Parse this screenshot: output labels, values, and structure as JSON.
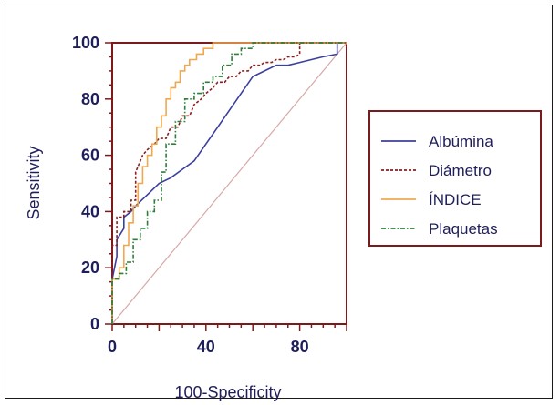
{
  "chart_data": {
    "type": "line",
    "xlabel": "100-Specificity",
    "ylabel": "Sensitivity",
    "xlim": [
      0,
      100
    ],
    "ylim": [
      0,
      100
    ],
    "x_ticks": [
      0,
      40,
      80
    ],
    "y_ticks": [
      0,
      20,
      40,
      60,
      80,
      100
    ],
    "grid": false,
    "legend_position": "right",
    "colors": {
      "axes": "#7a1a1a",
      "text": "#1e1e5a",
      "reference": "#d8a8a8"
    },
    "reference_line": {
      "x": [
        0,
        100
      ],
      "y": [
        0,
        100
      ]
    },
    "series": [
      {
        "name": "Albúmina",
        "color": "#3b3f9e",
        "style": "solid",
        "x": [
          0,
          0,
          2,
          2,
          5,
          5,
          8,
          10,
          15,
          20,
          25,
          30,
          35,
          40,
          45,
          50,
          55,
          60,
          65,
          70,
          75,
          80,
          85,
          90,
          96,
          96,
          100
        ],
        "y": [
          0,
          16,
          24,
          30,
          34,
          38,
          40,
          42,
          46,
          50,
          52,
          55,
          58,
          64,
          70,
          76,
          82,
          88,
          90,
          92,
          92,
          93,
          94,
          95,
          96,
          100,
          100
        ]
      },
      {
        "name": "Diámetro",
        "color": "#8b1e1e",
        "style": "dashed",
        "x": [
          0,
          0,
          2,
          2,
          5,
          5,
          8,
          8,
          10,
          10,
          13,
          15,
          18,
          20,
          23,
          25,
          28,
          30,
          33,
          35,
          38,
          40,
          43,
          45,
          48,
          50,
          53,
          55,
          58,
          60,
          63,
          65,
          68,
          70,
          73,
          75,
          78,
          80,
          80,
          100
        ],
        "y": [
          0,
          28,
          28,
          38,
          38,
          40,
          40,
          44,
          44,
          54,
          60,
          62,
          64,
          66,
          66,
          70,
          70,
          74,
          74,
          78,
          80,
          82,
          84,
          86,
          86,
          88,
          88,
          90,
          90,
          92,
          92,
          93,
          93,
          94,
          94,
          95,
          95,
          96,
          100,
          100
        ]
      },
      {
        "name": "ÍNDICE",
        "color": "#f0a850",
        "style": "solid",
        "x": [
          0,
          0,
          3,
          3,
          5,
          5,
          7,
          7,
          9,
          9,
          11,
          11,
          13,
          13,
          15,
          15,
          17,
          17,
          19,
          19,
          21,
          21,
          23,
          23,
          25,
          25,
          27,
          27,
          29,
          29,
          31,
          31,
          33,
          33,
          36,
          36,
          39,
          39,
          43,
          43,
          45,
          45,
          48,
          48,
          100
        ],
        "y": [
          0,
          16,
          16,
          20,
          20,
          28,
          28,
          36,
          36,
          42,
          42,
          50,
          50,
          56,
          56,
          60,
          60,
          64,
          64,
          70,
          70,
          74,
          74,
          80,
          80,
          84,
          84,
          86,
          86,
          90,
          90,
          92,
          92,
          94,
          94,
          96,
          96,
          98,
          98,
          100,
          100,
          100,
          100,
          100,
          100
        ]
      },
      {
        "name": "Plaquetas",
        "color": "#2e7d3a",
        "style": "dashdot",
        "x": [
          0,
          0,
          3,
          3,
          6,
          6,
          9,
          9,
          12,
          12,
          15,
          15,
          18,
          18,
          21,
          21,
          23,
          23,
          27,
          27,
          31,
          31,
          35,
          35,
          39,
          39,
          43,
          43,
          47,
          47,
          51,
          51,
          55,
          55,
          60,
          60,
          100
        ],
        "y": [
          0,
          16,
          16,
          18,
          18,
          22,
          22,
          30,
          30,
          34,
          34,
          40,
          40,
          44,
          44,
          54,
          54,
          64,
          64,
          72,
          72,
          80,
          80,
          82,
          82,
          86,
          86,
          88,
          88,
          92,
          92,
          96,
          96,
          98,
          98,
          100,
          100
        ]
      }
    ]
  }
}
